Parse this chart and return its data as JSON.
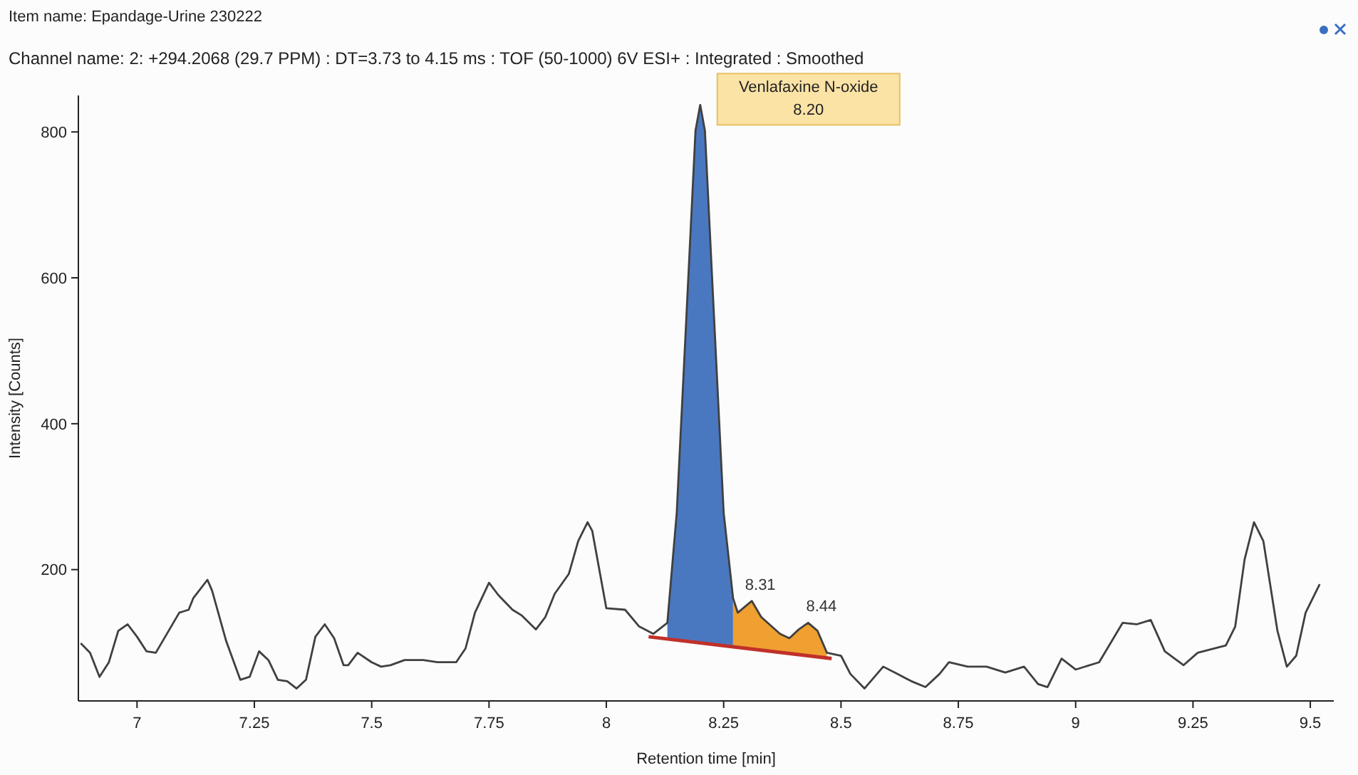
{
  "chart_data": {
    "type": "line",
    "title": "Item name: Epandage-Urine 230222",
    "subtitle": "Channel name: 2: +294.2068 (29.7 PPM) : DT=3.73 to 4.15 ms : TOF (50-1000) 6V ESI+ : Integrated : Smoothed",
    "xlabel": "Retention time [min]",
    "ylabel": "Intensity [Counts]",
    "xlim": [
      6.875,
      9.55
    ],
    "xticks": [
      7,
      {
        "value": 7.25,
        "label": "7.25"
      },
      {
        "value": 7.5,
        "label": "7.5"
      },
      {
        "value": 7.75,
        "label": "7.75"
      },
      8,
      {
        "value": 8.25,
        "label": "8.25"
      },
      {
        "value": 8.5,
        "label": "8.5"
      },
      {
        "value": 8.75,
        "label": "8.75"
      },
      9,
      {
        "value": 9.25,
        "label": "9.25"
      },
      {
        "value": 9.5,
        "label": "9.5"
      }
    ],
    "ylim": [
      20,
      850
    ],
    "yticks": [
      200,
      400,
      600,
      800
    ],
    "grid": false,
    "series": [
      {
        "color": "#404040",
        "x": [
          6.88,
          6.9,
          6.92,
          6.94,
          6.96,
          6.98,
          7.0,
          7.02,
          7.04,
          7.06,
          7.09,
          7.11,
          7.12,
          7.15,
          7.16,
          7.19,
          7.22,
          7.24,
          7.26,
          7.28,
          7.3,
          7.32,
          7.34,
          7.36,
          7.38,
          7.4,
          7.42,
          7.44,
          7.45,
          7.47,
          7.5,
          7.52,
          7.54,
          7.57,
          7.61,
          7.64,
          7.68,
          7.7,
          7.72,
          7.75,
          7.77,
          7.8,
          7.82,
          7.85,
          7.87,
          7.89,
          7.92,
          7.94,
          7.96,
          7.97,
          8.0,
          8.04,
          8.07,
          8.1,
          8.13,
          8.15,
          8.17,
          8.19,
          8.2,
          8.21,
          8.23,
          8.25,
          8.27,
          8.28,
          8.31,
          8.33,
          8.37,
          8.39,
          8.41,
          8.43,
          8.45,
          8.47,
          8.5,
          8.52,
          8.55,
          8.59,
          8.62,
          8.65,
          8.68,
          8.71,
          8.73,
          8.77,
          8.81,
          8.85,
          8.89,
          8.92,
          8.94,
          8.97,
          9.0,
          9.05,
          9.1,
          9.13,
          9.16,
          9.19,
          9.23,
          9.26,
          9.32,
          9.34,
          9.36,
          9.38,
          9.4,
          9.43,
          9.45,
          9.47,
          9.49,
          9.52
        ],
        "values": [
          99,
          86,
          53,
          73,
          116,
          125,
          108,
          88,
          86,
          108,
          141,
          145,
          161,
          186,
          171,
          102,
          49,
          53,
          88,
          76,
          49,
          47,
          37,
          49,
          108,
          125,
          106,
          69,
          69,
          86,
          73,
          67,
          69,
          76,
          76,
          73,
          73,
          92,
          141,
          182,
          165,
          145,
          137,
          118,
          135,
          167,
          194,
          239,
          265,
          253,
          147,
          145,
          122,
          112,
          127,
          278,
          539,
          802,
          837,
          802,
          539,
          278,
          161,
          141,
          157,
          135,
          112,
          106,
          118,
          127,
          116,
          86,
          82,
          57,
          37,
          67,
          57,
          47,
          39,
          57,
          73,
          67,
          67,
          59,
          67,
          43,
          39,
          78,
          63,
          73,
          127,
          125,
          131,
          88,
          69,
          86,
          96,
          122,
          214,
          265,
          239,
          116,
          67,
          82,
          141,
          180
        ]
      },
      {
        "type": "area",
        "color": "#4a78c0",
        "x": [
          8.13,
          8.15,
          8.17,
          8.19,
          8.2,
          8.21,
          8.23,
          8.25,
          8.27
        ],
        "values": [
          127,
          278,
          539,
          802,
          837,
          802,
          539,
          278,
          161
        ]
      },
      {
        "type": "area",
        "color": "#f0a030",
        "x": [
          8.27,
          8.28,
          8.31,
          8.33,
          8.37,
          8.39,
          8.41,
          8.43,
          8.45,
          8.47
        ],
        "values": [
          161,
          141,
          157,
          135,
          112,
          106,
          118,
          127,
          116,
          86
        ]
      },
      {
        "color": "#c0302a",
        "x": [
          8.09,
          8.48
        ],
        "values": [
          108,
          78
        ]
      }
    ],
    "annotations": [
      {
        "text": "Venlafaxine N-oxide\n8.20",
        "x": 8.2,
        "y": 837
      },
      {
        "text": "8.31",
        "x": 8.31,
        "y": 157
      },
      {
        "text": "8.44",
        "x": 8.44,
        "y": 127
      }
    ]
  }
}
